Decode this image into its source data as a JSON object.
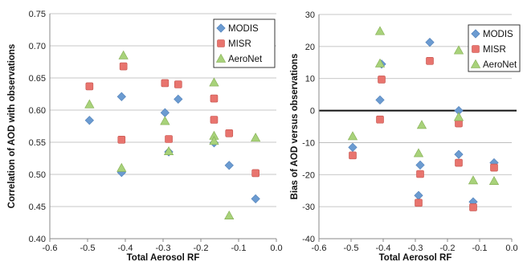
{
  "chart_data": [
    {
      "type": "scatter",
      "title": "",
      "xlabel": "Total Aerosol RF",
      "ylabel": "Correlation of AOD with observations",
      "xlim": [
        -0.6,
        0.0
      ],
      "ylim": [
        0.4,
        0.75
      ],
      "xticks": [
        "-0.6",
        "-0.5",
        "-0.4",
        "-0.3",
        "-0.2",
        "-0.1",
        "0.0"
      ],
      "yticks": [
        "0.40",
        "0.45",
        "0.50",
        "0.55",
        "0.60",
        "0.65",
        "0.70",
        "0.75"
      ],
      "grid": "horizontal",
      "legend_position": "top-right",
      "series": [
        {
          "name": "MODIS",
          "marker": "diamond",
          "color": "#6b9bd1",
          "x": [
            -0.495,
            -0.41,
            -0.41,
            -0.295,
            -0.285,
            -0.26,
            -0.165,
            -0.125,
            -0.055
          ],
          "y": [
            0.584,
            0.621,
            0.503,
            0.596,
            0.535,
            0.617,
            0.549,
            0.514,
            0.462
          ]
        },
        {
          "name": "MISR",
          "marker": "square",
          "color": "#e8746e",
          "x": [
            -0.495,
            -0.405,
            -0.41,
            -0.295,
            -0.285,
            -0.26,
            -0.165,
            -0.165,
            -0.125,
            -0.055
          ],
          "y": [
            0.637,
            0.668,
            0.554,
            0.642,
            0.555,
            0.64,
            0.618,
            0.585,
            0.564,
            0.502
          ]
        },
        {
          "name": "AeroNet",
          "marker": "triangle",
          "color": "#a8d27a",
          "x": [
            -0.495,
            -0.405,
            -0.41,
            -0.295,
            -0.285,
            -0.165,
            -0.165,
            -0.165,
            -0.125,
            -0.055
          ],
          "y": [
            0.609,
            0.685,
            0.51,
            0.583,
            0.536,
            0.643,
            0.56,
            0.552,
            0.436,
            0.557
          ]
        }
      ]
    },
    {
      "type": "scatter",
      "title": "",
      "xlabel": "Total Aerosol RF",
      "ylabel": "Bias of AOD versus observations",
      "xlim": [
        -0.6,
        0.0
      ],
      "ylim": [
        -40,
        30
      ],
      "xticks": [
        "-0.6",
        "-0.5",
        "-0.4",
        "-0.3",
        "-0.2",
        "-0.1",
        "0.0"
      ],
      "yticks": [
        "-40",
        "-30",
        "-20",
        "-10",
        "0",
        "10",
        "20",
        "30"
      ],
      "grid": "horizontal",
      "zero_line": true,
      "legend_position": "top-right",
      "series": [
        {
          "name": "MODIS",
          "marker": "diamond",
          "color": "#6b9bd1",
          "x": [
            -0.495,
            -0.405,
            -0.41,
            -0.255,
            -0.29,
            -0.285,
            -0.165,
            -0.165,
            -0.12,
            -0.055
          ],
          "y": [
            -11.5,
            14.5,
            3.3,
            21.3,
            -26.5,
            -17.0,
            0.0,
            -13.7,
            -28.5,
            -16.3
          ]
        },
        {
          "name": "MISR",
          "marker": "square",
          "color": "#e8746e",
          "x": [
            -0.495,
            -0.405,
            -0.41,
            -0.255,
            -0.29,
            -0.285,
            -0.165,
            -0.165,
            -0.12,
            -0.055
          ],
          "y": [
            -14.0,
            9.7,
            -2.8,
            15.5,
            -28.8,
            -19.8,
            -4.0,
            -16.3,
            -30.2,
            -17.8
          ]
        },
        {
          "name": "AeroNet",
          "marker": "triangle",
          "color": "#a8d27a",
          "x": [
            -0.495,
            -0.41,
            -0.41,
            -0.29,
            -0.28,
            -0.165,
            -0.165,
            -0.12,
            -0.055
          ],
          "y": [
            -8.0,
            24.8,
            14.7,
            -13.3,
            -4.5,
            18.8,
            -2.0,
            -21.8,
            -22.0
          ]
        }
      ]
    }
  ]
}
